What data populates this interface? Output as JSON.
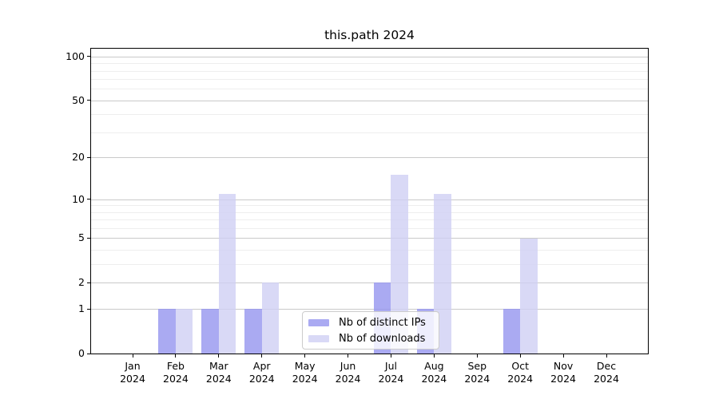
{
  "title": "this.path 2024",
  "legend": {
    "items": [
      {
        "label": "Nb of distinct IPs"
      },
      {
        "label": "Nb of downloads"
      }
    ]
  },
  "chart_data": {
    "type": "bar",
    "title": "this.path 2024",
    "x_months": [
      "Jan",
      "Feb",
      "Mar",
      "Apr",
      "May",
      "Jun",
      "Jul",
      "Aug",
      "Sep",
      "Oct",
      "Nov",
      "Dec"
    ],
    "x_year": "2024",
    "series": [
      {
        "name": "Nb of distinct IPs",
        "color": "#9595ef",
        "values": [
          0,
          1,
          1,
          1,
          0,
          0,
          2,
          1,
          0,
          1,
          0,
          0
        ]
      },
      {
        "name": "Nb of downloads",
        "color": "#d0d0f4",
        "values": [
          0,
          1,
          11,
          2,
          0,
          0,
          15,
          11,
          0,
          5,
          0,
          0
        ]
      }
    ],
    "xlabel": "",
    "ylabel": "",
    "yscale": "log1p",
    "ylim": [
      0,
      113
    ],
    "yticks": [
      0,
      1,
      2,
      5,
      10,
      20,
      50,
      100
    ],
    "yticks_minor": [
      3,
      4,
      6,
      7,
      8,
      9,
      30,
      40,
      60,
      70,
      80,
      90
    ],
    "grid": "horizontal-on",
    "legend_position": "inside-bottom-center",
    "colors": {
      "major_grid": "#c9c9c9",
      "minor_grid": "#eeeeee",
      "spine": "#000000",
      "bar_distinct_ips": "#9595ef",
      "bar_downloads": "#d0d0f4"
    }
  }
}
